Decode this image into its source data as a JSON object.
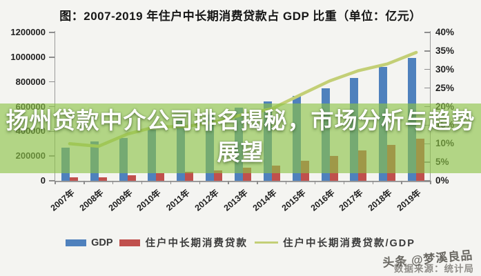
{
  "page": {
    "headline_line1": "扬州贷款中介公司排名揭秘，市场分析与趋势",
    "headline_line2": "展望",
    "watermark": "头条 @梦溪良品",
    "source": "数据来源：统计局"
  },
  "colors": {
    "gdp_bar": "#4f81bd",
    "loan_bar": "#c0504d",
    "ratio_line": "#c3cf76",
    "overlay_band": "rgba(140,195,70,0.63)",
    "background": "#f4f4f1"
  },
  "chart_data": {
    "type": "bar",
    "title": "图：2007-2019 年住户中长期消费贷款占 GDP 比重（单位：亿元）",
    "categories": [
      "2007年",
      "2008年",
      "2009年",
      "2010年",
      "2011年",
      "2012年",
      "2013年",
      "2014年",
      "2015年",
      "2016年",
      "2017年",
      "2018年",
      "2019年"
    ],
    "series": [
      {
        "name": "GDP",
        "type": "bar",
        "axis": "left",
        "color": "#4f81bd",
        "values": [
          270092,
          319245,
          348518,
          412119,
          487940,
          538580,
          592963,
          643563,
          688858,
          746395,
          832036,
          919281,
          990865
        ]
      },
      {
        "name": "住户中长期消费贷款",
        "type": "bar",
        "axis": "left",
        "color": "#c0504d",
        "values": [
          27000,
          29600,
          44000,
          60000,
          71000,
          85000,
          106000,
          125000,
          160000,
          201000,
          247000,
          290000,
          343000
        ]
      },
      {
        "name": "住户中长期消费贷款/GDP",
        "type": "line",
        "axis": "right",
        "color": "#c3cf76",
        "values": [
          10.0,
          9.3,
          12.6,
          14.6,
          14.6,
          15.8,
          17.9,
          19.4,
          23.2,
          26.9,
          29.7,
          31.5,
          34.6
        ]
      }
    ],
    "left_axis": {
      "min": 0,
      "max": 1200000,
      "step": 200000,
      "tick_labels": [
        "0",
        "200000",
        "400000",
        "600000",
        "800000",
        "1000000",
        "1200000"
      ]
    },
    "right_axis": {
      "min": 0,
      "max": 40,
      "step": 5,
      "tick_labels": [
        "0%",
        "5%",
        "10%",
        "15%",
        "20%",
        "25%",
        "30%",
        "35%",
        "40%"
      ]
    },
    "grid": false,
    "legend_position": "bottom"
  }
}
